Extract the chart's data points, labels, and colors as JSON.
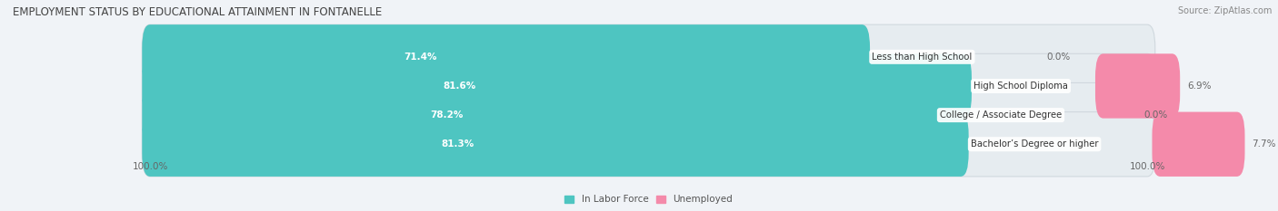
{
  "title": "EMPLOYMENT STATUS BY EDUCATIONAL ATTAINMENT IN FONTANELLE",
  "source": "Source: ZipAtlas.com",
  "categories": [
    "Less than High School",
    "High School Diploma",
    "College / Associate Degree",
    "Bachelor’s Degree or higher"
  ],
  "in_labor_force": [
    71.4,
    81.6,
    78.2,
    81.3
  ],
  "unemployed": [
    0.0,
    6.9,
    0.0,
    7.7
  ],
  "bar_color_labor": "#4ec5c1",
  "bar_color_unemployed": "#f48aaa",
  "bar_bg_color": "#e6ecf0",
  "bar_height": 0.62,
  "x_left_label": "100.0%",
  "x_right_label": "100.0%",
  "legend_labor": "In Labor Force",
  "legend_unemployed": "Unemployed",
  "title_fontsize": 8.5,
  "source_fontsize": 7.0,
  "label_fontsize": 7.5,
  "category_fontsize": 7.2,
  "max_val": 100.0,
  "background_color": "#f0f3f7",
  "bar_edge_color": "#d0d8de",
  "label_color_inside": "#ffffff",
  "label_color_outside": "#666666",
  "category_bg": "#ffffff"
}
